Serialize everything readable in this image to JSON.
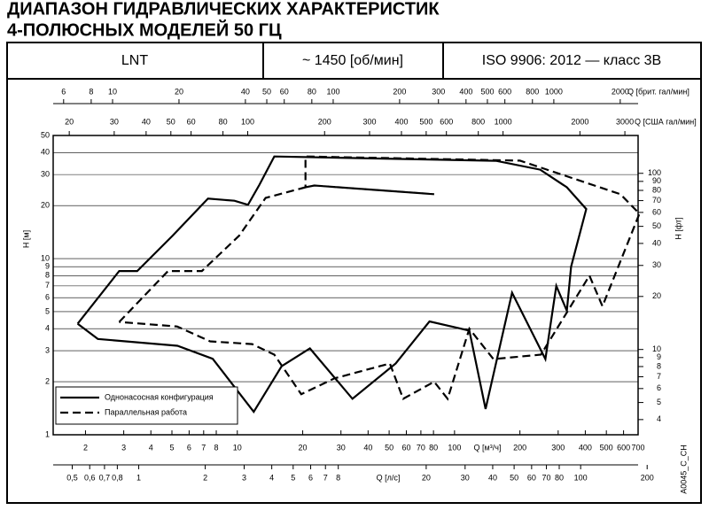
{
  "header": {
    "title_lines": [
      "ДИАПАЗОН ГИДРАВЛИЧЕСКИХ ХАРАКТЕРИСТИК",
      "4-ПОЛЮСНЫХ МОДЕЛЕЙ 50 ГЦ"
    ],
    "cells": [
      "LNT",
      "~ 1450 [об/мин]",
      "ISO 9906: 2012 — класс 3В"
    ]
  },
  "chart_data": {
    "type": "line",
    "log_scale": true,
    "grid": true,
    "code": "A0045_C_CH",
    "xlabel": "Q [м³/ч]",
    "xlim": [
      1.42,
      700
    ],
    "xticks": [
      2,
      3,
      4,
      5,
      6,
      7,
      8,
      10,
      20,
      30,
      40,
      50,
      60,
      70,
      80,
      100,
      200,
      300,
      400,
      500,
      600,
      700
    ],
    "x2label": "Q [л/с]",
    "x2lim": [
      0.41,
      182
    ],
    "x2ticks": [
      {
        "value": 0.5,
        "label": "0,5"
      },
      {
        "value": 0.6,
        "label": "0,6"
      },
      {
        "value": 0.7,
        "label": "0,7"
      },
      {
        "value": 0.8,
        "label": "0,8"
      },
      1,
      2,
      3,
      4,
      5,
      6,
      7,
      8,
      20,
      30,
      40,
      50,
      60,
      70,
      80,
      100,
      200
    ],
    "x3label": "Q [брит. гал/мин]",
    "x3lim": [
      5.38,
      2410
    ],
    "x3ticks": [
      6,
      8,
      10,
      20,
      40,
      50,
      60,
      80,
      100,
      200,
      300,
      400,
      500,
      600,
      800,
      1000,
      2000
    ],
    "x4label": "Q [США гал/мин]",
    "x4lim": [
      17.3,
      3380
    ],
    "x4ticks": [
      20,
      30,
      40,
      50,
      60,
      80,
      100,
      200,
      300,
      400,
      500,
      600,
      800,
      1000,
      2000,
      3000
    ],
    "ylabel": "H [м]",
    "ylim": [
      1,
      50
    ],
    "yticks": [
      1,
      2,
      3,
      4,
      5,
      6,
      7,
      8,
      9,
      10,
      20,
      30,
      40,
      50
    ],
    "y2label": "H [фт]",
    "y2lim": [
      3.28,
      164
    ],
    "y2ticks": [
      4,
      5,
      6,
      7,
      8,
      9,
      10,
      20,
      30,
      40,
      50,
      60,
      70,
      80,
      90,
      100
    ],
    "series": [
      {
        "name": "Однонасосная конфигурация",
        "color": "#000000",
        "dashed": false,
        "x": [
          1.84,
          2.86,
          3.46,
          5.04,
          7.33,
          9.7,
          11.2,
          12.65,
          14.8,
          155,
          248,
          329,
          404,
          344,
          329,
          294,
          262,
          184,
          139,
          117,
          76.7,
          53.6,
          33.9,
          21.6,
          16,
          11.9,
          7.7,
          5.3,
          2.28,
          1.84
        ],
        "values": [
          4.27,
          8.5,
          8.5,
          13.5,
          21.9,
          21.3,
          20.2,
          26.3,
          38,
          35.9,
          32,
          25.4,
          19.1,
          9,
          5.06,
          7,
          2.69,
          6.4,
          1.4,
          3.9,
          4.4,
          2.54,
          1.6,
          3.09,
          2.45,
          1.35,
          2.7,
          3.2,
          3.5,
          4.27
        ]
      },
      {
        "name": "Параллельная работа",
        "color": "#000000",
        "dashed": true,
        "x": [
          2.86,
          4.8,
          6.87,
          10.2,
          13.5,
          20.6,
          22.6,
          80.6,
          22.6,
          20.6,
          20.6,
          200,
          580,
          710,
          480,
          418,
          250,
          151,
          117,
          93,
          80.6,
          58,
          50.4,
          28,
          19.7,
          14.8,
          11.7,
          7.5,
          5.28,
          2.86
        ],
        "values": [
          4.37,
          8.5,
          8.5,
          13.5,
          22.1,
          25.4,
          26,
          23.2,
          26,
          25.4,
          38,
          36,
          23.2,
          18,
          5.36,
          8,
          2.85,
          2.69,
          4,
          1.6,
          2,
          1.6,
          2.54,
          2.09,
          1.7,
          2.85,
          3.27,
          3.39,
          4.12,
          4.37
        ]
      }
    ]
  }
}
